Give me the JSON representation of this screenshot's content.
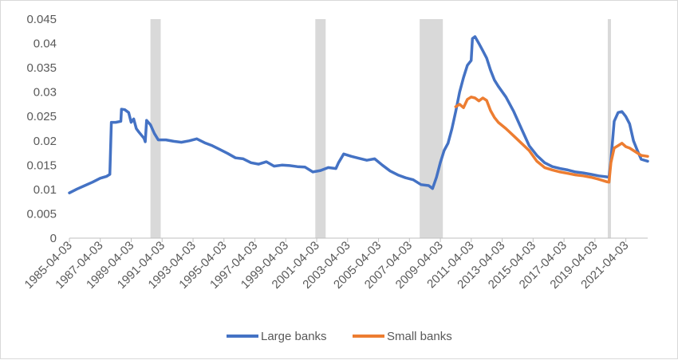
{
  "chart_data": {
    "type": "line",
    "title": "",
    "xlabel": "",
    "ylabel": "",
    "ylim": [
      0,
      0.045
    ],
    "xlim": [
      "1985-04-03",
      "2022-09-01"
    ],
    "grid": false,
    "legend_position": "bottom",
    "y_ticks": [
      "0",
      "0.005",
      "0.01",
      "0.015",
      "0.02",
      "0.025",
      "0.03",
      "0.035",
      "0.04",
      "0.045"
    ],
    "x_ticks": [
      "1985-04-03",
      "1987-04-03",
      "1989-04-03",
      "1991-04-03",
      "1993-04-03",
      "1995-04-03",
      "1997-04-03",
      "1999-04-03",
      "2001-04-03",
      "2003-04-03",
      "2005-04-03",
      "2007-04-03",
      "2009-04-03",
      "2011-04-03",
      "2013-04-03",
      "2015-04-03",
      "2017-04-03",
      "2019-04-03",
      "2021-04-03"
    ],
    "recession_shading": [
      {
        "start": "1990-07-01",
        "end": "1991-03-01"
      },
      {
        "start": "2001-03-01",
        "end": "2001-11-01"
      },
      {
        "start": "2007-12-01",
        "end": "2009-06-01"
      },
      {
        "start": "2020-02-01",
        "end": "2020-04-01"
      }
    ],
    "series": [
      {
        "name": "Large banks",
        "color": "#4472c4",
        "points": [
          [
            "1985-04-03",
            0.0093
          ],
          [
            "1985-10-01",
            0.0101
          ],
          [
            "1986-04-01",
            0.0108
          ],
          [
            "1986-10-01",
            0.0115
          ],
          [
            "1987-04-01",
            0.0123
          ],
          [
            "1987-09-01",
            0.0127
          ],
          [
            "1987-11-15",
            0.0131
          ],
          [
            "1987-12-20",
            0.0238
          ],
          [
            "1988-04-01",
            0.0238
          ],
          [
            "1988-08-01",
            0.024
          ],
          [
            "1988-08-15",
            0.0265
          ],
          [
            "1988-11-01",
            0.0264
          ],
          [
            "1989-02-01",
            0.0258
          ],
          [
            "1989-04-01",
            0.0238
          ],
          [
            "1989-06-01",
            0.0245
          ],
          [
            "1989-08-01",
            0.0225
          ],
          [
            "1989-10-01",
            0.0218
          ],
          [
            "1990-02-01",
            0.0205
          ],
          [
            "1990-03-01",
            0.0198
          ],
          [
            "1990-04-01",
            0.0242
          ],
          [
            "1990-07-01",
            0.0233
          ],
          [
            "1990-10-01",
            0.0215
          ],
          [
            "1991-01-01",
            0.0202
          ],
          [
            "1991-07-01",
            0.0202
          ],
          [
            "1992-01-01",
            0.0199
          ],
          [
            "1992-07-01",
            0.0197
          ],
          [
            "1993-01-01",
            0.02
          ],
          [
            "1993-07-01",
            0.0204
          ],
          [
            "1994-01-01",
            0.0196
          ],
          [
            "1994-07-01",
            0.019
          ],
          [
            "1995-01-01",
            0.0182
          ],
          [
            "1995-07-01",
            0.0174
          ],
          [
            "1996-01-01",
            0.0165
          ],
          [
            "1996-07-01",
            0.0163
          ],
          [
            "1997-01-01",
            0.0155
          ],
          [
            "1997-07-01",
            0.0152
          ],
          [
            "1998-01-01",
            0.0157
          ],
          [
            "1998-07-01",
            0.0148
          ],
          [
            "1999-01-01",
            0.015
          ],
          [
            "1999-07-01",
            0.0149
          ],
          [
            "2000-01-01",
            0.0147
          ],
          [
            "2000-07-01",
            0.0146
          ],
          [
            "2001-01-01",
            0.0136
          ],
          [
            "2001-07-01",
            0.0139
          ],
          [
            "2002-01-01",
            0.0145
          ],
          [
            "2002-07-01",
            0.0143
          ],
          [
            "2002-09-01",
            0.0155
          ],
          [
            "2003-01-01",
            0.0173
          ],
          [
            "2003-07-01",
            0.0168
          ],
          [
            "2004-01-01",
            0.0164
          ],
          [
            "2004-07-01",
            0.016
          ],
          [
            "2005-01-01",
            0.0163
          ],
          [
            "2005-07-01",
            0.015
          ],
          [
            "2006-01-01",
            0.0138
          ],
          [
            "2006-07-01",
            0.013
          ],
          [
            "2007-01-01",
            0.0124
          ],
          [
            "2007-07-01",
            0.012
          ],
          [
            "2008-01-01",
            0.011
          ],
          [
            "2008-07-01",
            0.0108
          ],
          [
            "2008-10-01",
            0.0102
          ],
          [
            "2009-01-01",
            0.0125
          ],
          [
            "2009-04-01",
            0.0155
          ],
          [
            "2009-07-01",
            0.018
          ],
          [
            "2009-10-01",
            0.0195
          ],
          [
            "2010-01-01",
            0.0225
          ],
          [
            "2010-04-01",
            0.026
          ],
          [
            "2010-07-01",
            0.03
          ],
          [
            "2010-10-01",
            0.033
          ],
          [
            "2011-01-01",
            0.0355
          ],
          [
            "2011-04-01",
            0.0365
          ],
          [
            "2011-05-01",
            0.041
          ],
          [
            "2011-07-01",
            0.0414
          ],
          [
            "2011-10-01",
            0.04
          ],
          [
            "2012-01-01",
            0.0385
          ],
          [
            "2012-04-01",
            0.037
          ],
          [
            "2012-07-01",
            0.0345
          ],
          [
            "2012-10-01",
            0.0325
          ],
          [
            "2013-01-01",
            0.0312
          ],
          [
            "2013-07-01",
            0.029
          ],
          [
            "2014-01-01",
            0.026
          ],
          [
            "2014-07-01",
            0.0225
          ],
          [
            "2015-01-01",
            0.019
          ],
          [
            "2015-07-01",
            0.017
          ],
          [
            "2016-01-01",
            0.0155
          ],
          [
            "2016-07-01",
            0.0147
          ],
          [
            "2017-01-01",
            0.0143
          ],
          [
            "2017-07-01",
            0.014
          ],
          [
            "2018-01-01",
            0.0136
          ],
          [
            "2018-07-01",
            0.0134
          ],
          [
            "2019-01-01",
            0.0131
          ],
          [
            "2019-07-01",
            0.0128
          ],
          [
            "2020-01-01",
            0.0126
          ],
          [
            "2020-03-01",
            0.0125
          ],
          [
            "2020-04-15",
            0.016
          ],
          [
            "2020-07-01",
            0.024
          ],
          [
            "2020-10-01",
            0.0258
          ],
          [
            "2021-01-01",
            0.026
          ],
          [
            "2021-04-01",
            0.025
          ],
          [
            "2021-07-01",
            0.0235
          ],
          [
            "2021-10-01",
            0.02
          ],
          [
            "2022-01-01",
            0.018
          ],
          [
            "2022-04-01",
            0.0162
          ],
          [
            "2022-09-01",
            0.0158
          ]
        ]
      },
      {
        "name": "Small banks",
        "color": "#ed7d31",
        "points": [
          [
            "2010-04-01",
            0.027
          ],
          [
            "2010-07-01",
            0.0275
          ],
          [
            "2010-10-01",
            0.0268
          ],
          [
            "2011-01-01",
            0.0285
          ],
          [
            "2011-04-01",
            0.029
          ],
          [
            "2011-07-01",
            0.0288
          ],
          [
            "2011-10-01",
            0.0282
          ],
          [
            "2012-01-01",
            0.0288
          ],
          [
            "2012-04-01",
            0.0283
          ],
          [
            "2012-07-01",
            0.0262
          ],
          [
            "2012-10-01",
            0.0248
          ],
          [
            "2013-01-01",
            0.0238
          ],
          [
            "2013-07-01",
            0.0225
          ],
          [
            "2014-01-01",
            0.021
          ],
          [
            "2014-07-01",
            0.0195
          ],
          [
            "2015-01-01",
            0.018
          ],
          [
            "2015-07-01",
            0.0158
          ],
          [
            "2016-01-01",
            0.0145
          ],
          [
            "2016-07-01",
            0.014
          ],
          [
            "2017-01-01",
            0.0136
          ],
          [
            "2017-07-01",
            0.0133
          ],
          [
            "2018-01-01",
            0.013
          ],
          [
            "2018-07-01",
            0.0128
          ],
          [
            "2019-01-01",
            0.0125
          ],
          [
            "2019-07-01",
            0.0121
          ],
          [
            "2020-01-01",
            0.0116
          ],
          [
            "2020-03-01",
            0.0115
          ],
          [
            "2020-04-15",
            0.0155
          ],
          [
            "2020-07-01",
            0.0185
          ],
          [
            "2020-10-01",
            0.019
          ],
          [
            "2021-01-01",
            0.0195
          ],
          [
            "2021-04-01",
            0.0188
          ],
          [
            "2021-07-01",
            0.0185
          ],
          [
            "2021-10-01",
            0.018
          ],
          [
            "2022-01-01",
            0.0175
          ],
          [
            "2022-04-01",
            0.017
          ],
          [
            "2022-09-01",
            0.0168
          ]
        ]
      }
    ]
  }
}
